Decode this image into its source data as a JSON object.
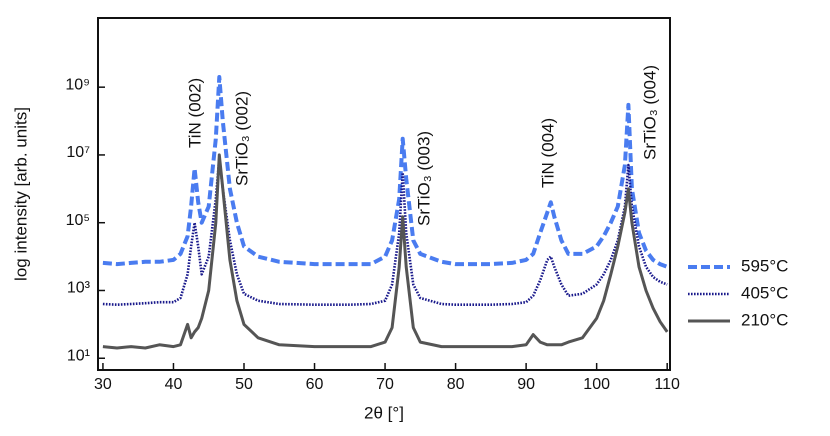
{
  "chart_data": {
    "type": "line",
    "xlabel": "2θ [°]",
    "ylabel": "log intensity [arb. units]",
    "log_y": true,
    "legend": "right",
    "x": [
      30,
      32,
      34,
      36,
      38,
      40,
      41,
      42,
      42.5,
      43,
      43.5,
      44,
      45,
      46,
      46.5,
      47,
      48,
      49,
      50,
      52,
      55,
      60,
      65,
      68,
      70,
      71,
      72,
      72.5,
      73,
      74,
      75,
      78,
      80,
      85,
      88,
      90,
      91,
      92,
      93,
      93.5,
      94,
      95,
      96,
      98,
      100,
      101,
      102,
      103,
      104,
      104.5,
      105,
      106,
      107,
      108,
      109,
      110
    ],
    "series": [
      {
        "name": "595°C",
        "color": "#4a7cf0",
        "style": "dashed",
        "values": [
          6500,
          6000,
          6500,
          7000,
          7000,
          8000,
          12000,
          40000,
          300000,
          4000000,
          400000,
          100000,
          300000,
          30000000,
          2000000000,
          100000000,
          1000000,
          100000,
          20000,
          10000,
          7000,
          6000,
          6000,
          6000,
          10000,
          30000,
          500000,
          30000000,
          2000000,
          30000,
          12000,
          7000,
          6000,
          6000,
          6500,
          8000,
          12000,
          50000,
          200000,
          400000,
          150000,
          30000,
          12000,
          12000,
          20000,
          40000,
          100000,
          300000,
          5000000,
          300000000,
          1000000,
          50000,
          15000,
          8000,
          6000,
          5000
        ]
      },
      {
        "name": "405°C",
        "color": "#1a1a8c",
        "style": "dotted",
        "values": [
          400,
          380,
          400,
          420,
          450,
          450,
          600,
          3000,
          20000,
          100000,
          20000,
          3000,
          10000,
          500000,
          8000000,
          1000000,
          30000,
          3000,
          800,
          500,
          400,
          380,
          380,
          400,
          500,
          1500,
          50000,
          3000000,
          50000,
          1500,
          600,
          400,
          380,
          380,
          400,
          450,
          700,
          2000,
          8000,
          10000,
          5000,
          1500,
          700,
          800,
          1500,
          3000,
          8000,
          30000,
          300000,
          5000000,
          300000,
          20000,
          5000,
          2500,
          1800,
          1500
        ]
      },
      {
        "name": "210°C",
        "color": "#555555",
        "style": "solid",
        "values": [
          22,
          20,
          22,
          20,
          25,
          22,
          25,
          100,
          40,
          60,
          80,
          150,
          1000,
          100000,
          10000000,
          1000000,
          8000,
          500,
          100,
          40,
          25,
          22,
          22,
          22,
          30,
          80,
          5000,
          150000,
          5000,
          80,
          30,
          22,
          22,
          22,
          22,
          25,
          50,
          30,
          25,
          25,
          25,
          25,
          30,
          40,
          150,
          500,
          3000,
          20000,
          200000,
          1000000,
          100000,
          5000,
          1000,
          300,
          120,
          60
        ]
      }
    ],
    "annotations": [
      "TiN (002)",
      "SrTiO₃ (002)",
      "SrTiO₃ (003)",
      "TiN (004)",
      "SrTiO₃ (004)"
    ],
    "xlim": [
      29.3,
      110.4
    ],
    "xticks": [
      30,
      40,
      50,
      60,
      70,
      80,
      90,
      100,
      110
    ],
    "ylim": [
      4.5,
      110000000000
    ],
    "yticks": [
      {
        "value": 10,
        "label": "10¹"
      },
      {
        "value": 1000,
        "label": "10³"
      },
      {
        "value": 100000,
        "label": "10⁵"
      },
      {
        "value": 10000000,
        "label": "10⁷"
      },
      {
        "value": 1000000000,
        "label": "10⁹"
      }
    ]
  }
}
